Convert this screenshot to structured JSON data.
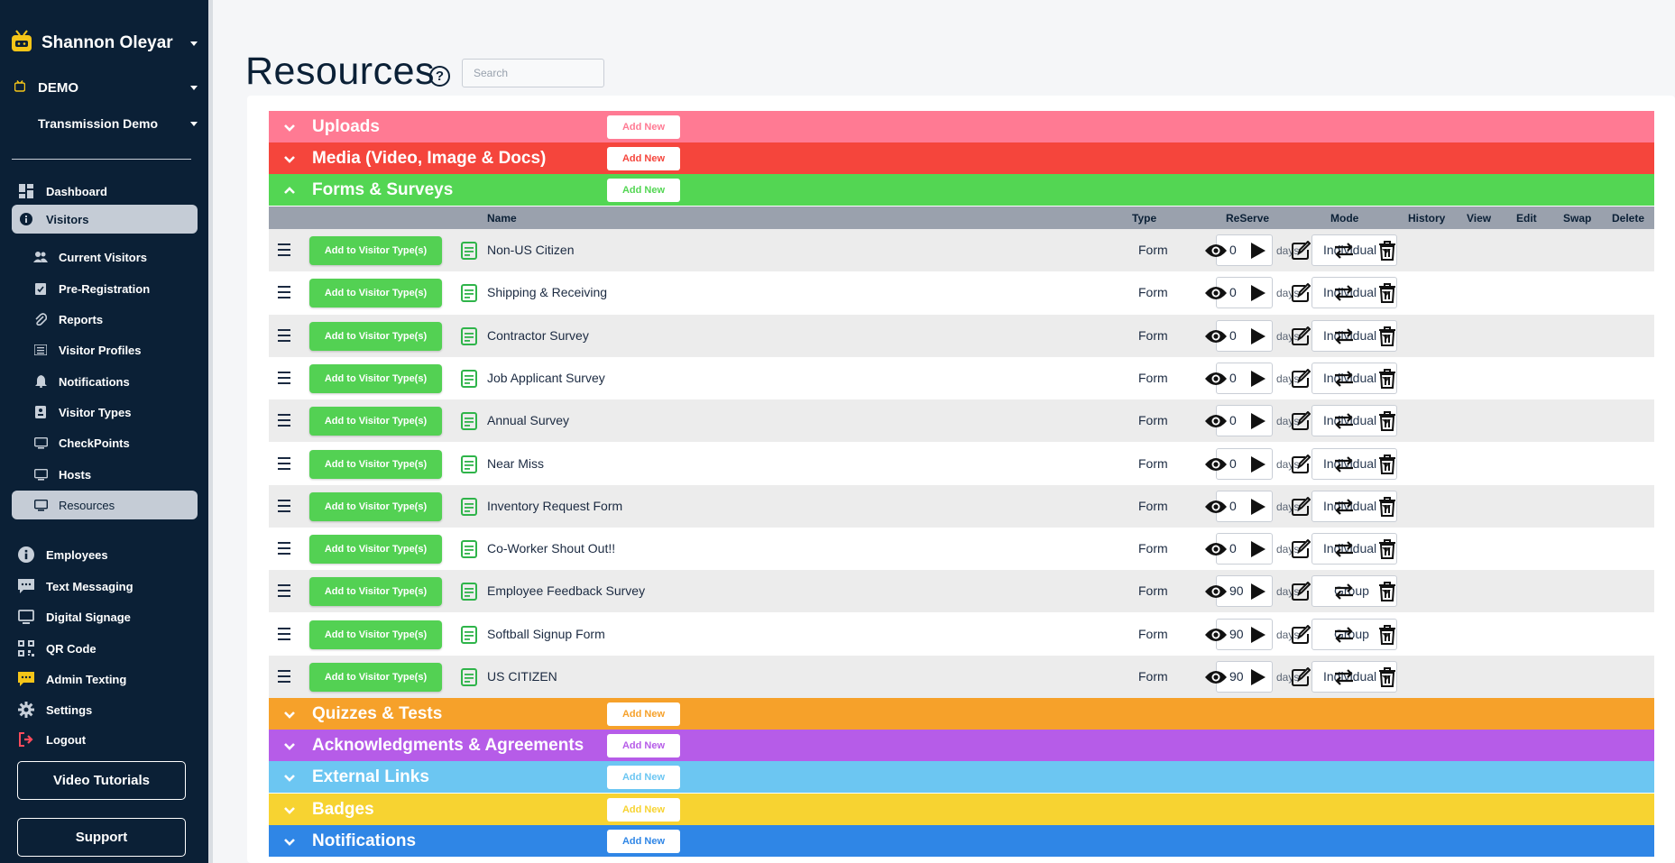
{
  "user": {
    "name": "Shannon Oleyar"
  },
  "org": {
    "name": "DEMO"
  },
  "site": {
    "name": "Transmission Demo"
  },
  "nav": {
    "dashboard": "Dashboard",
    "visitors": "Visitors",
    "current_visitors": "Current Visitors",
    "pre_registration": "Pre-Registration",
    "reports": "Reports",
    "visitor_profiles": "Visitor Profiles",
    "notifications": "Notifications",
    "visitor_types": "Visitor Types",
    "checkpoints": "CheckPoints",
    "hosts": "Hosts",
    "resources": "Resources",
    "employees": "Employees",
    "text_messaging": "Text Messaging",
    "digital_signage": "Digital Signage",
    "qr_code": "QR Code",
    "admin_texting": "Admin Texting",
    "settings": "Settings",
    "logout": "Logout"
  },
  "buttons": {
    "video_tutorials": "Video Tutorials",
    "support": "Support"
  },
  "page": {
    "title": "Resources",
    "search_placeholder": "Search"
  },
  "add_new_label": "Add New",
  "sections": {
    "uploads": {
      "title": "Uploads",
      "color": "#ff7a93"
    },
    "media": {
      "title": "Media (Video, Image & Docs)",
      "color": "#f5453c"
    },
    "forms": {
      "title": "Forms & Surveys",
      "color": "#53d653"
    },
    "quizzes": {
      "title": "Quizzes & Tests",
      "color": "#f6a12a"
    },
    "acknowledgments": {
      "title": "Acknowledgments & Agreements",
      "color": "#b65ce8"
    },
    "external_links": {
      "title": "External Links",
      "color": "#6cc6f2"
    },
    "badges": {
      "title": "Badges",
      "color": "#f7d331"
    },
    "notifications": {
      "title": "Notifications",
      "color": "#2f86e6"
    }
  },
  "table": {
    "headers": {
      "name": "Name",
      "type": "Type",
      "reserve": "ReServe",
      "mode": "Mode",
      "history": "History",
      "view": "View",
      "edit": "Edit",
      "swap": "Swap",
      "delete": "Delete"
    },
    "add_to_visitor_type_label": "Add to Visitor Type(s)",
    "days_label": "days",
    "rows": [
      {
        "name": "Non-US Citizen",
        "type": "Form",
        "reserve": "0",
        "mode": "Individual"
      },
      {
        "name": "Shipping & Receiving",
        "type": "Form",
        "reserve": "0",
        "mode": "Individual"
      },
      {
        "name": "Contractor Survey",
        "type": "Form",
        "reserve": "0",
        "mode": "Individual"
      },
      {
        "name": "Job Applicant Survey",
        "type": "Form",
        "reserve": "0",
        "mode": "Individual"
      },
      {
        "name": "Annual Survey",
        "type": "Form",
        "reserve": "0",
        "mode": "Individual"
      },
      {
        "name": "Near Miss",
        "type": "Form",
        "reserve": "0",
        "mode": "Individual"
      },
      {
        "name": "Inventory Request Form",
        "type": "Form",
        "reserve": "0",
        "mode": "Individual"
      },
      {
        "name": "Co-Worker Shout Out!!",
        "type": "Form",
        "reserve": "0",
        "mode": "Individual"
      },
      {
        "name": "Employee Feedback Survey",
        "type": "Form",
        "reserve": "90",
        "mode": "Group"
      },
      {
        "name": "Softball Signup Form",
        "type": "Form",
        "reserve": "90",
        "mode": "Group"
      },
      {
        "name": "US CITIZEN",
        "type": "Form",
        "reserve": "90",
        "mode": "Individual"
      }
    ]
  },
  "colors": {
    "sidebar": "#0b2036",
    "add_button": "#53d153",
    "form_icon": "#2fb44a"
  }
}
